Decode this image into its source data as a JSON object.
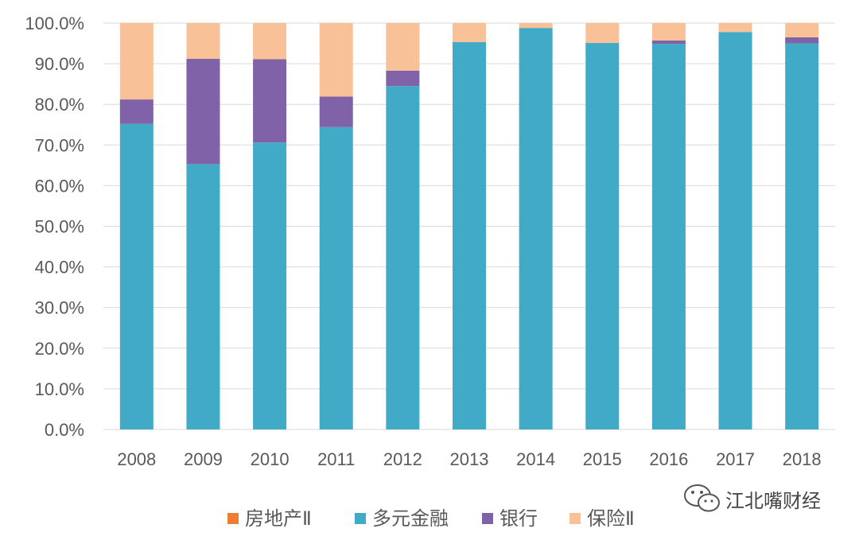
{
  "chart_data": {
    "type": "bar",
    "stacked": true,
    "categories": [
      "2008",
      "2009",
      "2010",
      "2011",
      "2012",
      "2013",
      "2014",
      "2015",
      "2016",
      "2017",
      "2018"
    ],
    "series": [
      {
        "name": "房地产Ⅱ",
        "color": "#ed7d31",
        "values": [
          0,
          0,
          0,
          0,
          0,
          0,
          0,
          0,
          0,
          0,
          0
        ]
      },
      {
        "name": "多元金融",
        "color": "#41aac6",
        "values": [
          75.2,
          65.3,
          70.6,
          74.4,
          84.5,
          95.3,
          98.8,
          95.1,
          94.9,
          97.8,
          95.0
        ]
      },
      {
        "name": "银行",
        "color": "#7f62a7",
        "values": [
          6.0,
          25.9,
          20.5,
          7.5,
          3.8,
          0,
          0,
          0,
          0.8,
          0,
          1.5
        ]
      },
      {
        "name": "保险Ⅱ",
        "color": "#f8c197",
        "values": [
          18.8,
          8.8,
          8.9,
          18.1,
          11.7,
          4.7,
          1.2,
          4.9,
          4.3,
          2.2,
          3.5
        ]
      }
    ],
    "yticks": [
      "0.0%",
      "10.0%",
      "20.0%",
      "30.0%",
      "40.0%",
      "50.0%",
      "60.0%",
      "70.0%",
      "80.0%",
      "90.0%",
      "100.0%"
    ],
    "ylim": [
      0,
      100
    ],
    "grid": true,
    "legend_position": "bottom",
    "title": "",
    "xlabel": "",
    "ylabel": ""
  },
  "watermark": {
    "text": "江北嘴财经",
    "icon": "wechat-icon"
  }
}
